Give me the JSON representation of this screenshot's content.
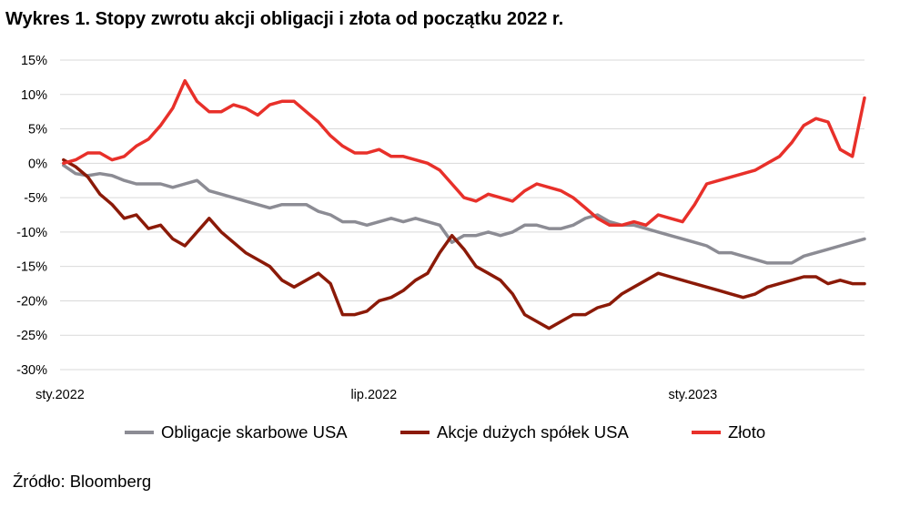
{
  "title": "Wykres 1. Stopy zwrotu akcji obligacji i złota od początku 2022 r.",
  "source": "Źródło: Bloomberg",
  "chart_data": {
    "type": "line",
    "title": "Wykres 1. Stopy zwrotu akcji obligacji i złota od początku 2022 r.",
    "xlabel": "",
    "ylabel": "",
    "xlim": [
      "2022-01-01",
      "2023-04-10"
    ],
    "ylim": [
      -30,
      15
    ],
    "y_unit": "%",
    "grid": true,
    "legend_position": "bottom",
    "x_tick_labels": [
      "sty.2022",
      "lip.2022",
      "sty.2023"
    ],
    "x_tick_dates": [
      "2022-01-01",
      "2022-07-01",
      "2023-01-01"
    ],
    "y_ticks": [
      15,
      10,
      5,
      0,
      -5,
      -10,
      -15,
      -20,
      -25,
      -30
    ],
    "y_tick_labels": [
      "15%",
      "10%",
      "5%",
      "0%",
      "-5%",
      "-10%",
      "-15%",
      "-20%",
      "-25%",
      "-30%"
    ],
    "series": [
      {
        "name": "Obligacje skarbowe USA",
        "color": "#8c8c94",
        "points": [
          [
            "2022-01-03",
            -0.3
          ],
          [
            "2022-01-10",
            -1.5
          ],
          [
            "2022-01-17",
            -1.8
          ],
          [
            "2022-01-24",
            -1.5
          ],
          [
            "2022-01-31",
            -1.8
          ],
          [
            "2022-02-07",
            -2.5
          ],
          [
            "2022-02-14",
            -3.0
          ],
          [
            "2022-02-21",
            -3.0
          ],
          [
            "2022-02-28",
            -3.0
          ],
          [
            "2022-03-07",
            -3.5
          ],
          [
            "2022-03-14",
            -3.0
          ],
          [
            "2022-03-21",
            -2.5
          ],
          [
            "2022-03-28",
            -4.0
          ],
          [
            "2022-04-04",
            -4.5
          ],
          [
            "2022-04-11",
            -5.0
          ],
          [
            "2022-04-18",
            -5.5
          ],
          [
            "2022-04-25",
            -6.0
          ],
          [
            "2022-05-02",
            -6.5
          ],
          [
            "2022-05-09",
            -6.0
          ],
          [
            "2022-05-16",
            -6.0
          ],
          [
            "2022-05-23",
            -6.0
          ],
          [
            "2022-05-30",
            -7.0
          ],
          [
            "2022-06-06",
            -7.5
          ],
          [
            "2022-06-13",
            -8.5
          ],
          [
            "2022-06-20",
            -8.5
          ],
          [
            "2022-06-27",
            -9.0
          ],
          [
            "2022-07-04",
            -8.5
          ],
          [
            "2022-07-11",
            -8.0
          ],
          [
            "2022-07-18",
            -8.5
          ],
          [
            "2022-07-25",
            -8.0
          ],
          [
            "2022-08-01",
            -8.5
          ],
          [
            "2022-08-08",
            -9.0
          ],
          [
            "2022-08-15",
            -11.5
          ],
          [
            "2022-08-22",
            -10.5
          ],
          [
            "2022-08-29",
            -10.5
          ],
          [
            "2022-09-05",
            -10.0
          ],
          [
            "2022-09-12",
            -10.5
          ],
          [
            "2022-09-19",
            -10.0
          ],
          [
            "2022-09-26",
            -9.0
          ],
          [
            "2022-10-03",
            -9.0
          ],
          [
            "2022-10-10",
            -9.5
          ],
          [
            "2022-10-17",
            -9.5
          ],
          [
            "2022-10-24",
            -9.0
          ],
          [
            "2022-10-31",
            -8.0
          ],
          [
            "2022-11-07",
            -7.5
          ],
          [
            "2022-11-14",
            -8.5
          ],
          [
            "2022-11-21",
            -9.0
          ],
          [
            "2022-11-28",
            -9.0
          ],
          [
            "2022-12-05",
            -9.5
          ],
          [
            "2022-12-12",
            -10.0
          ],
          [
            "2022-12-19",
            -10.5
          ],
          [
            "2022-12-26",
            -11.0
          ],
          [
            "2023-01-02",
            -11.5
          ],
          [
            "2023-01-09",
            -12.0
          ],
          [
            "2023-01-16",
            -13.0
          ],
          [
            "2023-01-23",
            -13.0
          ],
          [
            "2023-01-30",
            -13.5
          ],
          [
            "2023-02-06",
            -14.0
          ],
          [
            "2023-02-13",
            -14.5
          ],
          [
            "2023-02-20",
            -14.5
          ],
          [
            "2023-02-27",
            -14.5
          ],
          [
            "2023-03-06",
            -13.5
          ],
          [
            "2023-03-13",
            -13.0
          ],
          [
            "2023-03-20",
            -12.5
          ],
          [
            "2023-03-27",
            -12.0
          ],
          [
            "2023-04-03",
            -11.5
          ],
          [
            "2023-04-10",
            -11.0
          ]
        ]
      },
      {
        "name": "Akcje dużych spółek USA",
        "color": "#8b1a08",
        "points": [
          [
            "2022-01-03",
            0.5
          ],
          [
            "2022-01-10",
            -0.5
          ],
          [
            "2022-01-17",
            -2.0
          ],
          [
            "2022-01-24",
            -4.5
          ],
          [
            "2022-01-31",
            -6.0
          ],
          [
            "2022-02-07",
            -8.0
          ],
          [
            "2022-02-14",
            -7.5
          ],
          [
            "2022-02-21",
            -9.5
          ],
          [
            "2022-02-28",
            -9.0
          ],
          [
            "2022-03-07",
            -11.0
          ],
          [
            "2022-03-14",
            -12.0
          ],
          [
            "2022-03-21",
            -10.0
          ],
          [
            "2022-03-28",
            -8.0
          ],
          [
            "2022-04-04",
            -10.0
          ],
          [
            "2022-04-11",
            -11.5
          ],
          [
            "2022-04-18",
            -13.0
          ],
          [
            "2022-04-25",
            -14.0
          ],
          [
            "2022-05-02",
            -15.0
          ],
          [
            "2022-05-09",
            -17.0
          ],
          [
            "2022-05-16",
            -18.0
          ],
          [
            "2022-05-23",
            -17.0
          ],
          [
            "2022-05-30",
            -16.0
          ],
          [
            "2022-06-06",
            -17.5
          ],
          [
            "2022-06-13",
            -22.0
          ],
          [
            "2022-06-20",
            -22.0
          ],
          [
            "2022-06-27",
            -21.5
          ],
          [
            "2022-07-04",
            -20.0
          ],
          [
            "2022-07-11",
            -19.5
          ],
          [
            "2022-07-18",
            -18.5
          ],
          [
            "2022-07-25",
            -17.0
          ],
          [
            "2022-08-01",
            -16.0
          ],
          [
            "2022-08-08",
            -13.0
          ],
          [
            "2022-08-15",
            -10.5
          ],
          [
            "2022-08-22",
            -12.5
          ],
          [
            "2022-08-29",
            -15.0
          ],
          [
            "2022-09-05",
            -16.0
          ],
          [
            "2022-09-12",
            -17.0
          ],
          [
            "2022-09-19",
            -19.0
          ],
          [
            "2022-09-26",
            -22.0
          ],
          [
            "2022-10-03",
            -23.0
          ],
          [
            "2022-10-10",
            -24.0
          ],
          [
            "2022-10-17",
            -23.0
          ],
          [
            "2022-10-24",
            -22.0
          ],
          [
            "2022-10-31",
            -22.0
          ],
          [
            "2022-11-07",
            -21.0
          ],
          [
            "2022-11-14",
            -20.5
          ],
          [
            "2022-11-21",
            -19.0
          ],
          [
            "2022-11-28",
            -18.0
          ],
          [
            "2022-12-05",
            -17.0
          ],
          [
            "2022-12-12",
            -16.0
          ],
          [
            "2022-12-19",
            -16.5
          ],
          [
            "2022-12-26",
            -17.0
          ],
          [
            "2023-01-02",
            -17.5
          ],
          [
            "2023-01-09",
            -18.0
          ],
          [
            "2023-01-16",
            -18.5
          ],
          [
            "2023-01-23",
            -19.0
          ],
          [
            "2023-01-30",
            -19.5
          ],
          [
            "2023-02-06",
            -19.0
          ],
          [
            "2023-02-13",
            -18.0
          ],
          [
            "2023-02-20",
            -17.5
          ],
          [
            "2023-02-27",
            -17.0
          ],
          [
            "2023-03-06",
            -16.5
          ],
          [
            "2023-03-13",
            -16.5
          ],
          [
            "2023-03-20",
            -17.5
          ],
          [
            "2023-03-27",
            -17.0
          ],
          [
            "2023-04-03",
            -17.5
          ],
          [
            "2023-04-10",
            -17.5
          ]
        ]
      },
      {
        "name": "Złoto",
        "color": "#e8302a",
        "points": [
          [
            "2022-01-03",
            0.0
          ],
          [
            "2022-01-10",
            0.5
          ],
          [
            "2022-01-17",
            1.5
          ],
          [
            "2022-01-24",
            1.5
          ],
          [
            "2022-01-31",
            0.5
          ],
          [
            "2022-02-07",
            1.0
          ],
          [
            "2022-02-14",
            2.5
          ],
          [
            "2022-02-21",
            3.5
          ],
          [
            "2022-02-28",
            5.5
          ],
          [
            "2022-03-07",
            8.0
          ],
          [
            "2022-03-14",
            12.0
          ],
          [
            "2022-03-21",
            9.0
          ],
          [
            "2022-03-28",
            7.5
          ],
          [
            "2022-04-04",
            7.5
          ],
          [
            "2022-04-11",
            8.5
          ],
          [
            "2022-04-18",
            8.0
          ],
          [
            "2022-04-25",
            7.0
          ],
          [
            "2022-05-02",
            8.5
          ],
          [
            "2022-05-09",
            9.0
          ],
          [
            "2022-05-16",
            9.0
          ],
          [
            "2022-05-23",
            7.5
          ],
          [
            "2022-05-30",
            6.0
          ],
          [
            "2022-06-06",
            4.0
          ],
          [
            "2022-06-13",
            2.5
          ],
          [
            "2022-06-20",
            1.5
          ],
          [
            "2022-06-27",
            1.5
          ],
          [
            "2022-07-04",
            2.0
          ],
          [
            "2022-07-11",
            1.0
          ],
          [
            "2022-07-18",
            1.0
          ],
          [
            "2022-07-25",
            0.5
          ],
          [
            "2022-08-01",
            0.0
          ],
          [
            "2022-08-08",
            -1.0
          ],
          [
            "2022-08-15",
            -3.0
          ],
          [
            "2022-08-22",
            -5.0
          ],
          [
            "2022-08-29",
            -5.5
          ],
          [
            "2022-09-05",
            -4.5
          ],
          [
            "2022-09-12",
            -5.0
          ],
          [
            "2022-09-19",
            -5.5
          ],
          [
            "2022-09-26",
            -4.0
          ],
          [
            "2022-10-03",
            -3.0
          ],
          [
            "2022-10-10",
            -3.5
          ],
          [
            "2022-10-17",
            -4.0
          ],
          [
            "2022-10-24",
            -5.0
          ],
          [
            "2022-10-31",
            -6.5
          ],
          [
            "2022-11-07",
            -8.0
          ],
          [
            "2022-11-14",
            -9.0
          ],
          [
            "2022-11-21",
            -9.0
          ],
          [
            "2022-11-28",
            -8.5
          ],
          [
            "2022-12-05",
            -9.0
          ],
          [
            "2022-12-12",
            -7.5
          ],
          [
            "2022-12-19",
            -8.0
          ],
          [
            "2022-12-26",
            -8.5
          ],
          [
            "2023-01-02",
            -6.0
          ],
          [
            "2023-01-09",
            -3.0
          ],
          [
            "2023-01-16",
            -2.5
          ],
          [
            "2023-01-23",
            -2.0
          ],
          [
            "2023-01-30",
            -1.5
          ],
          [
            "2023-02-06",
            -1.0
          ],
          [
            "2023-02-13",
            0.0
          ],
          [
            "2023-02-20",
            1.0
          ],
          [
            "2023-02-27",
            3.0
          ],
          [
            "2023-03-06",
            5.5
          ],
          [
            "2023-03-13",
            6.5
          ],
          [
            "2023-03-20",
            6.0
          ],
          [
            "2023-03-27",
            2.0
          ],
          [
            "2023-04-03",
            1.0
          ],
          [
            "2023-04-10",
            9.5
          ]
        ]
      }
    ]
  }
}
